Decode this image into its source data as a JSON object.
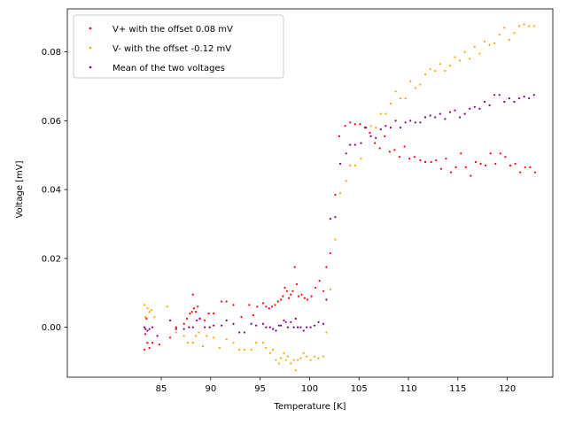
{
  "chart_data": {
    "type": "scatter",
    "title": "",
    "xlabel": "Temperature [K]",
    "ylabel": "Voltage [mV]",
    "xlim": [
      75.5,
      124.6
    ],
    "ylim": [
      -0.0145,
      0.0925
    ],
    "xticks": [
      85,
      90,
      95,
      100,
      105,
      110,
      115,
      120
    ],
    "yticks": [
      0.0,
      0.02,
      0.04,
      0.06,
      0.08
    ],
    "ytick_labels": [
      "0.00",
      "0.02",
      "0.04",
      "0.06",
      "0.08"
    ],
    "grid": false,
    "legend": "top-left",
    "series": [
      {
        "name": "V+ with the offset 0.08 mV",
        "color": "#ff0000",
        "points": [
          [
            83.3,
            -0.0065
          ],
          [
            83.4,
            -0.002
          ],
          [
            83.5,
            0.0025
          ],
          [
            83.6,
            -0.0045
          ],
          [
            83.8,
            -0.006
          ],
          [
            84.1,
            -0.0045
          ],
          [
            84.8,
            -0.005
          ],
          [
            85.9,
            -0.003
          ],
          [
            86.5,
            0.0
          ],
          [
            87.3,
            0.001
          ],
          [
            87.6,
            0.0025
          ],
          [
            87.9,
            0.004
          ],
          [
            88.1,
            0.0045
          ],
          [
            88.3,
            0.0055
          ],
          [
            88.5,
            0.0045
          ],
          [
            88.7,
            0.006
          ],
          [
            88.2,
            0.0095
          ],
          [
            88.9,
            0.0025
          ],
          [
            89.4,
            0.002
          ],
          [
            89.8,
            0.004
          ],
          [
            90.3,
            0.004
          ],
          [
            91.1,
            0.0075
          ],
          [
            91.6,
            0.0075
          ],
          [
            92.3,
            0.0065
          ],
          [
            93.1,
            0.003
          ],
          [
            93.9,
            0.0065
          ],
          [
            94.3,
            0.0035
          ],
          [
            94.7,
            0.006
          ],
          [
            95.3,
            0.007
          ],
          [
            95.6,
            0.006
          ],
          [
            95.9,
            0.0055
          ],
          [
            96.2,
            0.006
          ],
          [
            96.5,
            0.0065
          ],
          [
            96.8,
            0.0075
          ],
          [
            97.1,
            0.008
          ],
          [
            97.3,
            0.009
          ],
          [
            97.5,
            0.0115
          ],
          [
            97.7,
            0.0105
          ],
          [
            97.9,
            0.0085
          ],
          [
            98.1,
            0.0095
          ],
          [
            98.3,
            0.0105
          ],
          [
            98.5,
            0.0175
          ],
          [
            98.7,
            0.0125
          ],
          [
            98.9,
            0.009
          ],
          [
            99.2,
            0.0095
          ],
          [
            99.5,
            0.0085
          ],
          [
            99.8,
            0.008
          ],
          [
            100.2,
            0.009
          ],
          [
            100.6,
            0.0115
          ],
          [
            101.0,
            0.0135
          ],
          [
            101.4,
            0.0105
          ],
          [
            101.7,
            0.0175
          ],
          [
            102.1,
            0.0215
          ],
          [
            102.6,
            0.0385
          ],
          [
            103.0,
            0.0555
          ],
          [
            103.6,
            0.0585
          ],
          [
            104.1,
            0.0595
          ],
          [
            104.6,
            0.059
          ],
          [
            105.1,
            0.059
          ],
          [
            105.6,
            0.058
          ],
          [
            106.1,
            0.0565
          ],
          [
            106.6,
            0.0535
          ],
          [
            107.1,
            0.052
          ],
          [
            107.6,
            0.0555
          ],
          [
            108.1,
            0.051
          ],
          [
            108.6,
            0.0515
          ],
          [
            109.1,
            0.0495
          ],
          [
            109.6,
            0.0525
          ],
          [
            110.1,
            0.049
          ],
          [
            110.6,
            0.0495
          ],
          [
            111.2,
            0.0485
          ],
          [
            111.7,
            0.048
          ],
          [
            112.3,
            0.048
          ],
          [
            112.8,
            0.0485
          ],
          [
            113.3,
            0.046
          ],
          [
            113.8,
            0.049
          ],
          [
            114.3,
            0.045
          ],
          [
            114.8,
            0.0465
          ],
          [
            115.3,
            0.0505
          ],
          [
            115.8,
            0.0465
          ],
          [
            116.3,
            0.044
          ],
          [
            116.8,
            0.048
          ],
          [
            117.3,
            0.0475
          ],
          [
            117.8,
            0.047
          ],
          [
            118.3,
            0.0505
          ],
          [
            118.8,
            0.0475
          ],
          [
            119.3,
            0.0505
          ],
          [
            119.8,
            0.0495
          ],
          [
            120.3,
            0.047
          ],
          [
            120.8,
            0.0475
          ],
          [
            121.3,
            0.045
          ],
          [
            121.8,
            0.0465
          ],
          [
            122.3,
            0.0465
          ],
          [
            122.8,
            0.045
          ]
        ]
      },
      {
        "name": "V- with the offset -0.12 mV",
        "color": "#ffa500",
        "points": [
          [
            83.3,
            0.0065
          ],
          [
            83.4,
            0.003
          ],
          [
            83.6,
            0.0055
          ],
          [
            83.8,
            0.0045
          ],
          [
            84.0,
            0.005
          ],
          [
            84.3,
            0.003
          ],
          [
            85.6,
            0.006
          ],
          [
            86.5,
            -0.0015
          ],
          [
            87.3,
            -0.0025
          ],
          [
            87.7,
            -0.0045
          ],
          [
            88.2,
            -0.0045
          ],
          [
            88.5,
            -0.0025
          ],
          [
            88.8,
            -0.0015
          ],
          [
            89.2,
            -0.0055
          ],
          [
            89.6,
            -0.0025
          ],
          [
            90.3,
            -0.003
          ],
          [
            90.9,
            -0.006
          ],
          [
            91.6,
            -0.0035
          ],
          [
            92.3,
            -0.0045
          ],
          [
            92.9,
            -0.0065
          ],
          [
            93.4,
            -0.0065
          ],
          [
            94.1,
            -0.0065
          ],
          [
            94.6,
            -0.0045
          ],
          [
            95.3,
            -0.0045
          ],
          [
            95.6,
            -0.006
          ],
          [
            96.0,
            -0.0075
          ],
          [
            96.3,
            -0.0065
          ],
          [
            96.6,
            -0.0095
          ],
          [
            96.9,
            -0.0105
          ],
          [
            97.1,
            -0.009
          ],
          [
            97.4,
            -0.0075
          ],
          [
            97.6,
            -0.0095
          ],
          [
            97.8,
            -0.0085
          ],
          [
            98.1,
            -0.0105
          ],
          [
            98.4,
            -0.0095
          ],
          [
            98.6,
            -0.0125
          ],
          [
            98.8,
            -0.0095
          ],
          [
            99.1,
            -0.009
          ],
          [
            99.4,
            -0.0075
          ],
          [
            99.7,
            -0.0085
          ],
          [
            100.1,
            -0.0095
          ],
          [
            100.5,
            -0.0085
          ],
          [
            100.9,
            -0.009
          ],
          [
            101.4,
            -0.0085
          ],
          [
            101.7,
            -0.0015
          ],
          [
            102.1,
            0.011
          ],
          [
            102.6,
            0.0255
          ],
          [
            103.1,
            0.039
          ],
          [
            103.7,
            0.0425
          ],
          [
            104.1,
            0.047
          ],
          [
            104.6,
            0.047
          ],
          [
            105.2,
            0.049
          ],
          [
            105.7,
            0.058
          ],
          [
            106.2,
            0.0585
          ],
          [
            106.7,
            0.058
          ],
          [
            107.2,
            0.062
          ],
          [
            107.7,
            0.062
          ],
          [
            108.2,
            0.065
          ],
          [
            108.7,
            0.0685
          ],
          [
            109.2,
            0.0665
          ],
          [
            109.7,
            0.0665
          ],
          [
            110.2,
            0.0715
          ],
          [
            110.7,
            0.0695
          ],
          [
            111.2,
            0.0705
          ],
          [
            111.7,
            0.0735
          ],
          [
            112.2,
            0.075
          ],
          [
            112.7,
            0.0745
          ],
          [
            113.2,
            0.0765
          ],
          [
            113.7,
            0.0745
          ],
          [
            114.2,
            0.076
          ],
          [
            114.7,
            0.0785
          ],
          [
            115.2,
            0.0775
          ],
          [
            115.7,
            0.08
          ],
          [
            116.2,
            0.078
          ],
          [
            116.7,
            0.0815
          ],
          [
            117.2,
            0.0795
          ],
          [
            117.7,
            0.083
          ],
          [
            118.2,
            0.082
          ],
          [
            118.7,
            0.0825
          ],
          [
            119.2,
            0.085
          ],
          [
            119.7,
            0.087
          ],
          [
            120.2,
            0.0835
          ],
          [
            120.7,
            0.0855
          ],
          [
            121.2,
            0.0875
          ],
          [
            121.7,
            0.088
          ],
          [
            122.2,
            0.0875
          ],
          [
            122.7,
            0.0875
          ]
        ]
      },
      {
        "name": "Mean of the two voltages",
        "color": "#800080",
        "points": [
          [
            83.3,
            0.0
          ],
          [
            83.4,
            -0.0005
          ],
          [
            83.6,
            -0.001
          ],
          [
            83.8,
            -0.0005
          ],
          [
            84.1,
            0.0
          ],
          [
            84.6,
            -0.0025
          ],
          [
            85.9,
            0.002
          ],
          [
            86.5,
            -0.0005
          ],
          [
            87.3,
            -0.0005
          ],
          [
            87.8,
            0.0
          ],
          [
            88.2,
            0.0
          ],
          [
            88.6,
            0.002
          ],
          [
            88.9,
            0.0025
          ],
          [
            89.4,
            0.0
          ],
          [
            89.9,
            0.0
          ],
          [
            90.3,
            0.0005
          ],
          [
            91.1,
            0.0005
          ],
          [
            91.6,
            0.002
          ],
          [
            92.3,
            0.001
          ],
          [
            92.9,
            -0.0015
          ],
          [
            93.4,
            -0.0015
          ],
          [
            94.1,
            0.001
          ],
          [
            94.6,
            0.0005
          ],
          [
            95.3,
            0.001
          ],
          [
            95.6,
            0.0
          ],
          [
            96.0,
            0.0
          ],
          [
            96.3,
            -0.0005
          ],
          [
            96.6,
            -0.001
          ],
          [
            96.9,
            0.0005
          ],
          [
            97.1,
            0.0005
          ],
          [
            97.4,
            0.002
          ],
          [
            97.6,
            0.0015
          ],
          [
            97.8,
            0.0
          ],
          [
            98.1,
            0.0015
          ],
          [
            98.4,
            0.0
          ],
          [
            98.6,
            0.0025
          ],
          [
            98.8,
            0.0
          ],
          [
            99.1,
            0.0
          ],
          [
            99.4,
            -0.001
          ],
          [
            99.7,
            0.0
          ],
          [
            100.1,
            0.0
          ],
          [
            100.5,
            0.0005
          ],
          [
            100.9,
            0.0015
          ],
          [
            101.4,
            0.001
          ],
          [
            101.7,
            0.008
          ],
          [
            102.1,
            0.0315
          ],
          [
            102.6,
            0.032
          ],
          [
            103.1,
            0.0475
          ],
          [
            103.7,
            0.0505
          ],
          [
            104.1,
            0.053
          ],
          [
            104.6,
            0.053
          ],
          [
            105.2,
            0.0535
          ],
          [
            105.7,
            0.058
          ],
          [
            106.2,
            0.0555
          ],
          [
            106.7,
            0.055
          ],
          [
            107.2,
            0.0575
          ],
          [
            107.7,
            0.0585
          ],
          [
            108.2,
            0.058
          ],
          [
            108.7,
            0.06
          ],
          [
            109.2,
            0.058
          ],
          [
            109.7,
            0.0595
          ],
          [
            110.2,
            0.06
          ],
          [
            110.7,
            0.0595
          ],
          [
            111.2,
            0.0595
          ],
          [
            111.7,
            0.061
          ],
          [
            112.2,
            0.0615
          ],
          [
            112.7,
            0.061
          ],
          [
            113.2,
            0.062
          ],
          [
            113.7,
            0.0605
          ],
          [
            114.2,
            0.0625
          ],
          [
            114.7,
            0.063
          ],
          [
            115.2,
            0.061
          ],
          [
            115.7,
            0.062
          ],
          [
            116.2,
            0.0635
          ],
          [
            116.7,
            0.064
          ],
          [
            117.2,
            0.0635
          ],
          [
            117.7,
            0.0655
          ],
          [
            118.2,
            0.0645
          ],
          [
            118.7,
            0.0675
          ],
          [
            119.2,
            0.0675
          ],
          [
            119.7,
            0.0655
          ],
          [
            120.2,
            0.0665
          ],
          [
            120.7,
            0.0655
          ],
          [
            121.2,
            0.0665
          ],
          [
            121.7,
            0.067
          ],
          [
            122.2,
            0.0665
          ],
          [
            122.7,
            0.0675
          ]
        ]
      }
    ]
  }
}
